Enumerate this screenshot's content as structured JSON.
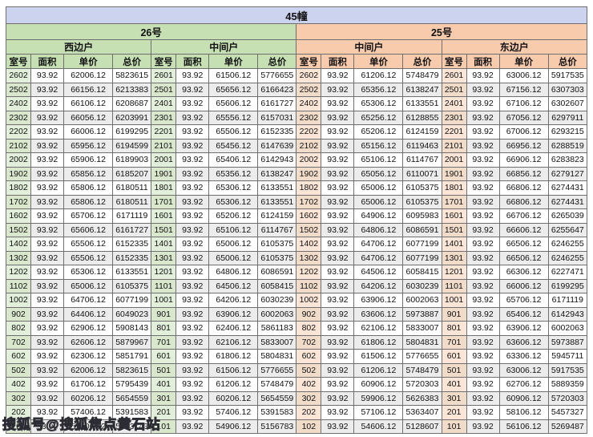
{
  "title": "45幢",
  "watermark": "搜狐号@搜狐焦点黄石站",
  "columns": [
    "室号",
    "面积",
    "单价",
    "总价"
  ],
  "sections": [
    {
      "name": "26号",
      "units": [
        "西边户",
        "中间户"
      ]
    },
    {
      "name": "25号",
      "units": [
        "中间户",
        "东边户"
      ]
    }
  ],
  "colors": {
    "banner_bg": "#ccd3ee",
    "green_header": "#c6e0b4",
    "peach_header": "#f8cbad",
    "green_cell": "#e2efda",
    "peach_cell": "#fbe5d6",
    "stripe": "#ececec",
    "border": "#6f6f6f"
  },
  "rows": [
    [
      "2602",
      "93.92",
      "62006.12",
      "5823615",
      "2601",
      "93.92",
      "61506.12",
      "5776655",
      "2602",
      "93.92",
      "61206.12",
      "5748479",
      "2601",
      "93.92",
      "63006.12",
      "5917535"
    ],
    [
      "2502",
      "93.92",
      "66156.12",
      "6213383",
      "2501",
      "93.92",
      "65656.12",
      "6166423",
      "2502",
      "93.92",
      "65356.12",
      "6138247",
      "2501",
      "93.92",
      "67156.12",
      "6307303"
    ],
    [
      "2402",
      "93.92",
      "66106.12",
      "6208687",
      "2401",
      "93.92",
      "65606.12",
      "6161727",
      "2402",
      "93.92",
      "65306.12",
      "6133551",
      "2401",
      "93.92",
      "67106.12",
      "6302607"
    ],
    [
      "2302",
      "93.92",
      "66056.12",
      "6203991",
      "2301",
      "93.92",
      "65556.12",
      "6157031",
      "2302",
      "93.92",
      "65256.12",
      "6128855",
      "2301",
      "93.92",
      "67056.12",
      "6297911"
    ],
    [
      "2202",
      "93.92",
      "66006.12",
      "6199295",
      "2201",
      "93.92",
      "65506.12",
      "6152335",
      "2202",
      "93.92",
      "65206.12",
      "6124159",
      "2201",
      "93.92",
      "67006.12",
      "6293215"
    ],
    [
      "2102",
      "93.92",
      "65956.12",
      "6194599",
      "2101",
      "93.92",
      "65456.12",
      "6147639",
      "2102",
      "93.92",
      "65156.12",
      "6119463",
      "2101",
      "93.92",
      "66956.12",
      "6288519"
    ],
    [
      "2002",
      "93.92",
      "65906.12",
      "6189903",
      "2001",
      "93.92",
      "65406.12",
      "6142943",
      "2002",
      "93.92",
      "65106.12",
      "6114767",
      "2001",
      "93.92",
      "66906.12",
      "6283823"
    ],
    [
      "1902",
      "93.92",
      "65856.12",
      "6185207",
      "1901",
      "93.92",
      "65356.12",
      "6138247",
      "1902",
      "93.92",
      "65056.12",
      "6110071",
      "1901",
      "93.92",
      "66856.12",
      "6279127"
    ],
    [
      "1802",
      "93.92",
      "65806.12",
      "6180511",
      "1801",
      "93.92",
      "65306.12",
      "6133551",
      "1802",
      "93.92",
      "65006.12",
      "6105375",
      "1801",
      "93.92",
      "66806.12",
      "6274431"
    ],
    [
      "1702",
      "93.92",
      "65806.12",
      "6180511",
      "1701",
      "93.92",
      "65306.12",
      "6133551",
      "1702",
      "93.92",
      "65006.12",
      "6105375",
      "1701",
      "93.92",
      "66806.12",
      "6274431"
    ],
    [
      "1602",
      "93.92",
      "65706.12",
      "6171119",
      "1601",
      "93.92",
      "65206.12",
      "6124159",
      "1602",
      "93.92",
      "64906.12",
      "6095983",
      "1601",
      "93.92",
      "66706.12",
      "6265039"
    ],
    [
      "1502",
      "93.92",
      "65606.12",
      "6161727",
      "1501",
      "93.92",
      "65106.12",
      "6114767",
      "1502",
      "93.92",
      "64806.12",
      "6086591",
      "1501",
      "93.92",
      "66606.12",
      "6255647"
    ],
    [
      "1402",
      "93.92",
      "65506.12",
      "6152335",
      "1401",
      "93.92",
      "65006.12",
      "6105375",
      "1402",
      "93.92",
      "64706.12",
      "6077199",
      "1401",
      "93.92",
      "66506.12",
      "6246255"
    ],
    [
      "1302",
      "93.92",
      "65506.12",
      "6152335",
      "1301",
      "93.92",
      "65006.12",
      "6105375",
      "1302",
      "93.92",
      "64706.12",
      "6077199",
      "1301",
      "93.92",
      "66506.12",
      "6246255"
    ],
    [
      "1202",
      "93.92",
      "65306.12",
      "6133551",
      "1201",
      "93.92",
      "64806.12",
      "6086591",
      "1202",
      "93.92",
      "64506.12",
      "6058415",
      "1201",
      "93.92",
      "66306.12",
      "6227471"
    ],
    [
      "1102",
      "93.92",
      "65006.12",
      "6105375",
      "1101",
      "93.92",
      "64506.12",
      "6058415",
      "1102",
      "93.92",
      "64206.12",
      "6030239",
      "1101",
      "93.92",
      "66006.12",
      "6199295"
    ],
    [
      "1002",
      "93.92",
      "64706.12",
      "6077199",
      "1001",
      "93.92",
      "64206.12",
      "6030239",
      "1002",
      "93.92",
      "63906.12",
      "6002063",
      "1001",
      "93.92",
      "65706.12",
      "6171119"
    ],
    [
      "902",
      "93.92",
      "64406.12",
      "6049023",
      "901",
      "93.92",
      "63906.12",
      "6002063",
      "902",
      "93.92",
      "63606.12",
      "5973887",
      "901",
      "93.92",
      "65406.12",
      "6142943"
    ],
    [
      "802",
      "93.92",
      "62906.12",
      "5908143",
      "801",
      "93.92",
      "62406.12",
      "5861183",
      "802",
      "93.92",
      "62106.12",
      "5833007",
      "801",
      "93.92",
      "63906.12",
      "6002063"
    ],
    [
      "702",
      "93.92",
      "62606.12",
      "5879967",
      "701",
      "93.92",
      "62106.12",
      "5833007",
      "702",
      "93.92",
      "61806.12",
      "5804831",
      "701",
      "93.92",
      "63606.12",
      "5973887"
    ],
    [
      "602",
      "93.92",
      "62306.12",
      "5851791",
      "601",
      "93.92",
      "61806.12",
      "5804831",
      "602",
      "93.92",
      "61506.12",
      "5776655",
      "601",
      "93.92",
      "63306.12",
      "5945711"
    ],
    [
      "502",
      "93.92",
      "62006.12",
      "5823615",
      "501",
      "93.92",
      "61506.12",
      "5776655",
      "502",
      "93.92",
      "61206.12",
      "5748479",
      "501",
      "93.92",
      "63006.12",
      "5917535"
    ],
    [
      "402",
      "93.92",
      "61706.12",
      "5795439",
      "401",
      "93.92",
      "61206.12",
      "5748479",
      "402",
      "93.92",
      "60906.12",
      "5720303",
      "401",
      "93.92",
      "62706.12",
      "5889359"
    ],
    [
      "302",
      "93.92",
      "60206.12",
      "5654559",
      "301",
      "93.92",
      "60206.12",
      "5654559",
      "302",
      "93.92",
      "59906.12",
      "5626383",
      "301",
      "93.92",
      "60906.12",
      "5720303"
    ],
    [
      "202",
      "93.92",
      "57406.12",
      "5391583",
      "201",
      "93.92",
      "57406.12",
      "5391583",
      "202",
      "93.92",
      "57106.12",
      "5363407",
      "201",
      "93.92",
      "58106.12",
      "5457327"
    ],
    [
      "102",
      "93.92",
      "55406.12",
      "5203743",
      "101",
      "93.92",
      "54906.12",
      "5156783",
      "102",
      "93.92",
      "54606.12",
      "5128607",
      "101",
      "93.92",
      "56106.12",
      "5269487"
    ]
  ]
}
